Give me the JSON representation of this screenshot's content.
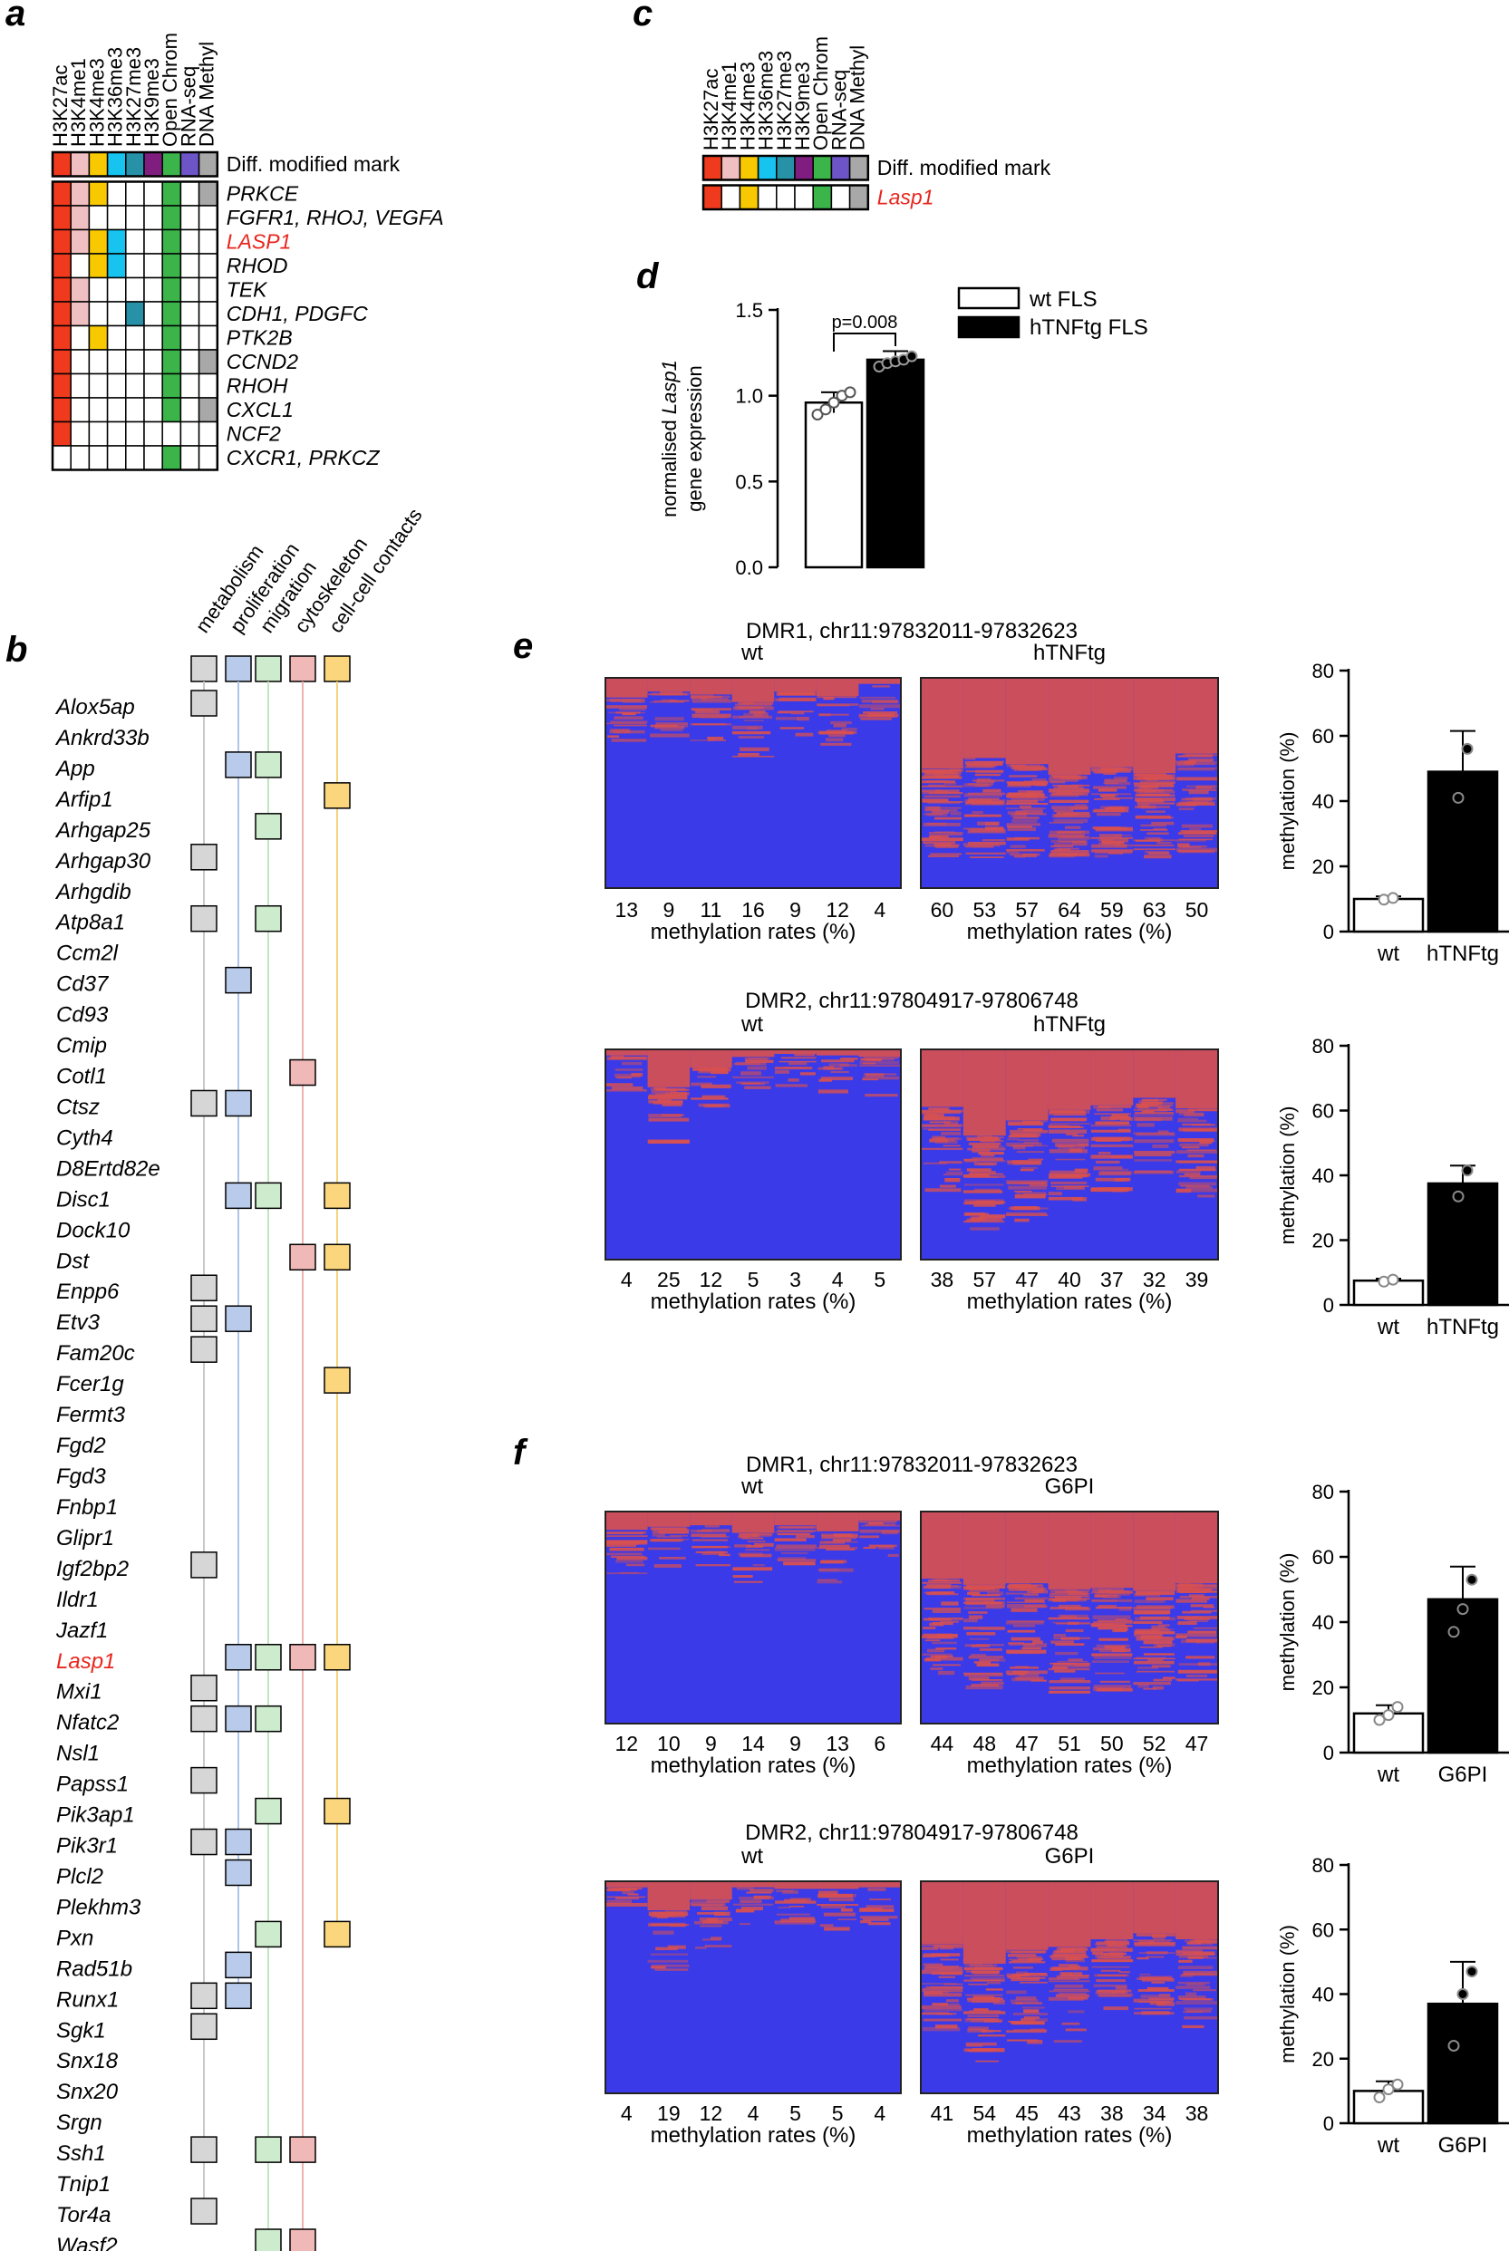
{
  "colors": {
    "H3K27ac": "#f03a1e",
    "H3K4me1": "#efbfc1",
    "H3K4me3": "#f8c800",
    "H3K36me3": "#17c3ef",
    "H3K27me3": "#2792a7",
    "H3K9me3": "#7f1e7f",
    "OpenChrom": "#3bb54a",
    "RNAseq": "#6d55c8",
    "DNAMethyl": "#a8a8a8",
    "red_text": "#e8261e",
    "heat_low": "#3a3ae8",
    "heat_high": "#d85050"
  },
  "panel_a": {
    "letter": "a",
    "columns": [
      "H3K27ac",
      "H3K4me1",
      "H3K4me3",
      "H3K36me3",
      "H3K27me3",
      "H3K9me3",
      "Open Chrom",
      "RNA-seq",
      "DNA Methyl"
    ],
    "header_label": "Diff. modified mark",
    "rows": [
      {
        "label": "PRKCE",
        "cells": [
          1,
          1,
          1,
          0,
          0,
          0,
          1,
          0,
          1
        ],
        "red": false
      },
      {
        "label": "FGFR1, RHOJ, VEGFA",
        "cells": [
          1,
          1,
          0,
          0,
          0,
          0,
          1,
          0,
          0
        ],
        "red": false
      },
      {
        "label": "LASP1",
        "cells": [
          1,
          1,
          1,
          1,
          0,
          0,
          1,
          0,
          0
        ],
        "red": true
      },
      {
        "label": "RHOD",
        "cells": [
          1,
          0,
          1,
          1,
          0,
          0,
          1,
          0,
          0
        ],
        "red": false
      },
      {
        "label": "TEK",
        "cells": [
          1,
          1,
          0,
          0,
          0,
          0,
          1,
          0,
          0
        ],
        "red": false
      },
      {
        "label": "CDH1, PDGFC",
        "cells": [
          1,
          1,
          0,
          0,
          1,
          0,
          1,
          0,
          0
        ],
        "red": false
      },
      {
        "label": "PTK2B",
        "cells": [
          1,
          0,
          1,
          0,
          0,
          0,
          1,
          0,
          0
        ],
        "red": false
      },
      {
        "label": "CCND2",
        "cells": [
          1,
          0,
          0,
          0,
          0,
          0,
          1,
          0,
          1
        ],
        "red": false
      },
      {
        "label": "RHOH",
        "cells": [
          1,
          0,
          0,
          0,
          0,
          0,
          1,
          0,
          0
        ],
        "red": false
      },
      {
        "label": "CXCL1",
        "cells": [
          1,
          0,
          0,
          0,
          0,
          0,
          1,
          0,
          1
        ],
        "red": false
      },
      {
        "label": "NCF2",
        "cells": [
          1,
          0,
          0,
          0,
          0,
          0,
          0,
          0,
          0
        ],
        "red": false
      },
      {
        "label": "CXCR1, PRKCZ",
        "cells": [
          0,
          0,
          0,
          0,
          0,
          0,
          1,
          0,
          0
        ],
        "red": false
      }
    ]
  },
  "panel_b": {
    "letter": "b",
    "categories": [
      "metabolism",
      "proliferation",
      "migration",
      "cytoskeleton",
      "cell-cell contacts"
    ],
    "category_colors": [
      "#d6d6d6",
      "#b9cbeb",
      "#cdebcd",
      "#f1b8b8",
      "#fbd67c"
    ],
    "category_line_colors": [
      "#c8c8c8",
      "#b0c4e8",
      "#bfe6bf",
      "#efb0b0",
      "#f5d27a"
    ],
    "genes": [
      {
        "name": "Alox5ap",
        "m": [
          1,
          0,
          0,
          0,
          0
        ]
      },
      {
        "name": "Ankrd33b",
        "m": [
          0,
          0,
          0,
          0,
          0
        ]
      },
      {
        "name": "App",
        "m": [
          0,
          1,
          1,
          0,
          0
        ]
      },
      {
        "name": "Arfip1",
        "m": [
          0,
          0,
          0,
          0,
          1
        ]
      },
      {
        "name": "Arhgap25",
        "m": [
          0,
          0,
          1,
          0,
          0
        ]
      },
      {
        "name": "Arhgap30",
        "m": [
          1,
          0,
          0,
          0,
          0
        ]
      },
      {
        "name": "Arhgdib",
        "m": [
          0,
          0,
          0,
          0,
          0
        ]
      },
      {
        "name": "Atp8a1",
        "m": [
          1,
          0,
          1,
          0,
          0
        ]
      },
      {
        "name": "Ccm2l",
        "m": [
          0,
          0,
          0,
          0,
          0
        ]
      },
      {
        "name": "Cd37",
        "m": [
          0,
          1,
          0,
          0,
          0
        ]
      },
      {
        "name": "Cd93",
        "m": [
          0,
          0,
          0,
          0,
          0
        ]
      },
      {
        "name": "Cmip",
        "m": [
          0,
          0,
          0,
          0,
          0
        ]
      },
      {
        "name": "Cotl1",
        "m": [
          0,
          0,
          0,
          1,
          0
        ]
      },
      {
        "name": "Ctsz",
        "m": [
          1,
          1,
          0,
          0,
          0
        ]
      },
      {
        "name": "Cyth4",
        "m": [
          0,
          0,
          0,
          0,
          0
        ]
      },
      {
        "name": "D8Ertd82e",
        "m": [
          0,
          0,
          0,
          0,
          0
        ]
      },
      {
        "name": "Disc1",
        "m": [
          0,
          1,
          1,
          0,
          1
        ]
      },
      {
        "name": "Dock10",
        "m": [
          0,
          0,
          0,
          0,
          0
        ]
      },
      {
        "name": "Dst",
        "m": [
          0,
          0,
          0,
          1,
          1
        ]
      },
      {
        "name": "Enpp6",
        "m": [
          1,
          0,
          0,
          0,
          0
        ]
      },
      {
        "name": "Etv3",
        "m": [
          1,
          1,
          0,
          0,
          0
        ]
      },
      {
        "name": "Fam20c",
        "m": [
          1,
          0,
          0,
          0,
          0
        ]
      },
      {
        "name": "Fcer1g",
        "m": [
          0,
          0,
          0,
          0,
          1
        ]
      },
      {
        "name": "Fermt3",
        "m": [
          0,
          0,
          0,
          0,
          0
        ]
      },
      {
        "name": "Fgd2",
        "m": [
          0,
          0,
          0,
          0,
          0
        ]
      },
      {
        "name": "Fgd3",
        "m": [
          0,
          0,
          0,
          0,
          0
        ]
      },
      {
        "name": "Fnbp1",
        "m": [
          0,
          0,
          0,
          0,
          0
        ]
      },
      {
        "name": "Glipr1",
        "m": [
          0,
          0,
          0,
          0,
          0
        ]
      },
      {
        "name": "Igf2bp2",
        "m": [
          1,
          0,
          0,
          0,
          0
        ]
      },
      {
        "name": "Ildr1",
        "m": [
          0,
          0,
          0,
          0,
          0
        ]
      },
      {
        "name": "Jazf1",
        "m": [
          0,
          0,
          0,
          0,
          0
        ]
      },
      {
        "name": "Lasp1",
        "m": [
          0,
          1,
          1,
          1,
          1
        ],
        "red": true
      },
      {
        "name": "Mxi1",
        "m": [
          1,
          0,
          0,
          0,
          0
        ]
      },
      {
        "name": "Nfatc2",
        "m": [
          1,
          1,
          1,
          0,
          0
        ]
      },
      {
        "name": "Nsl1",
        "m": [
          0,
          0,
          0,
          0,
          0
        ]
      },
      {
        "name": "Papss1",
        "m": [
          1,
          0,
          0,
          0,
          0
        ]
      },
      {
        "name": "Pik3ap1",
        "m": [
          0,
          0,
          1,
          0,
          1
        ]
      },
      {
        "name": "Pik3r1",
        "m": [
          1,
          1,
          0,
          0,
          0
        ]
      },
      {
        "name": "Plcl2",
        "m": [
          0,
          1,
          0,
          0,
          0
        ]
      },
      {
        "name": "Plekhm3",
        "m": [
          0,
          0,
          0,
          0,
          0
        ]
      },
      {
        "name": "Pxn",
        "m": [
          0,
          0,
          1,
          0,
          1
        ]
      },
      {
        "name": "Rad51b",
        "m": [
          0,
          1,
          0,
          0,
          0
        ]
      },
      {
        "name": "Runx1",
        "m": [
          1,
          1,
          0,
          0,
          0
        ]
      },
      {
        "name": "Sgk1",
        "m": [
          1,
          0,
          0,
          0,
          0
        ]
      },
      {
        "name": "Snx18",
        "m": [
          0,
          0,
          0,
          0,
          0
        ]
      },
      {
        "name": "Snx20",
        "m": [
          0,
          0,
          0,
          0,
          0
        ]
      },
      {
        "name": "Srgn",
        "m": [
          0,
          0,
          0,
          0,
          0
        ]
      },
      {
        "name": "Ssh1",
        "m": [
          1,
          0,
          1,
          1,
          0
        ]
      },
      {
        "name": "Tnip1",
        "m": [
          0,
          0,
          0,
          0,
          0
        ]
      },
      {
        "name": "Tor4a",
        "m": [
          1,
          0,
          0,
          0,
          0
        ]
      },
      {
        "name": "Wasf2",
        "m": [
          0,
          0,
          1,
          1,
          0
        ]
      }
    ]
  },
  "panel_c": {
    "letter": "c",
    "columns": [
      "H3K27ac",
      "H3K4me1",
      "H3K4me3",
      "H3K36me3",
      "H3K27me3",
      "H3K9me3",
      "Open Chrom",
      "RNA-seq",
      "DNA Methyl"
    ],
    "header_label": "Diff. modified mark",
    "row": {
      "label": "Lasp1",
      "cells": [
        1,
        0,
        1,
        0,
        0,
        0,
        1,
        0,
        1
      ]
    }
  },
  "chart_data": [
    {
      "id": "d",
      "type": "bar",
      "letter": "d",
      "categories": [
        "wt FLS",
        "hTNFtg FLS"
      ],
      "values": [
        0.96,
        1.21
      ],
      "errors": [
        0.06,
        0.05
      ],
      "points": [
        [
          0.89,
          0.92,
          0.96,
          1.0,
          1.02
        ],
        [
          1.17,
          1.19,
          1.2,
          1.21,
          1.23
        ]
      ],
      "ylabel_pre": "normalised ",
      "ylabel_gene": "Lasp1",
      "ylabel_line2": "gene expression",
      "ylim": [
        0,
        1.5
      ],
      "yticks": [
        "0.0",
        "0.5",
        "1.0",
        "1.5"
      ],
      "pvalue": "p=0.008",
      "legend": [
        "wt FLS",
        "hTNFtg FLS"
      ]
    },
    {
      "id": "e1",
      "type": "heatmap_with_bar",
      "letter": "e",
      "title": "DMR1, chr11:97832011-97832623",
      "groups": [
        "wt",
        "hTNFtg"
      ],
      "rates": [
        [
          13,
          9,
          11,
          16,
          9,
          12,
          4
        ],
        [
          60,
          53,
          57,
          64,
          59,
          63,
          50
        ]
      ],
      "axis_label": "methylation rates (%)",
      "bar": {
        "categories": [
          "wt",
          "hTNFtg"
        ],
        "values": [
          10,
          49
        ],
        "errors": [
          0.8,
          12.5
        ],
        "points": [
          [
            9.8,
            10.3
          ],
          [
            41,
            56
          ]
        ],
        "ylim": [
          0,
          80
        ],
        "yticks": [
          "0",
          "20",
          "40",
          "60",
          "80"
        ],
        "ylabel": "methylation (%)"
      }
    },
    {
      "id": "e2",
      "type": "heatmap_with_bar",
      "title": "DMR2, chr11:97804917-97806748",
      "groups": [
        "wt",
        "hTNFtg"
      ],
      "rates": [
        [
          4,
          25,
          12,
          5,
          3,
          4,
          5
        ],
        [
          38,
          57,
          47,
          40,
          37,
          32,
          39
        ]
      ],
      "axis_label": "methylation rates (%)",
      "bar": {
        "categories": [
          "wt",
          "hTNFtg"
        ],
        "values": [
          7.5,
          37.5
        ],
        "errors": [
          0.6,
          5.5
        ],
        "points": [
          [
            7.2,
            7.8
          ],
          [
            33.5,
            41.5
          ]
        ],
        "ylim": [
          0,
          80
        ],
        "yticks": [
          "0",
          "20",
          "40",
          "60",
          "80"
        ],
        "ylabel": "methylation (%)"
      }
    },
    {
      "id": "f1",
      "type": "heatmap_with_bar",
      "letter": "f",
      "title": "DMR1, chr11:97832011-97832623",
      "groups": [
        "wt",
        "G6PI"
      ],
      "rates": [
        [
          12,
          10,
          9,
          14,
          9,
          13,
          6
        ],
        [
          44,
          48,
          47,
          51,
          50,
          52,
          47
        ]
      ],
      "axis_label": "methylation rates (%)",
      "bar": {
        "categories": [
          "wt",
          "G6PI"
        ],
        "values": [
          12,
          47
        ],
        "errors": [
          2.5,
          10
        ],
        "points": [
          [
            10,
            11.5,
            14
          ],
          [
            37,
            44,
            53
          ]
        ],
        "ylim": [
          0,
          80
        ],
        "yticks": [
          "0",
          "20",
          "40",
          "60",
          "80"
        ],
        "ylabel": "methylation (%)"
      }
    },
    {
      "id": "f2",
      "type": "heatmap_with_bar",
      "title": "DMR2, chr11:97804917-97806748",
      "groups": [
        "wt",
        "G6PI"
      ],
      "rates": [
        [
          4,
          19,
          12,
          4,
          5,
          5,
          4
        ],
        [
          41,
          54,
          45,
          43,
          38,
          34,
          38
        ]
      ],
      "axis_label": "methylation rates (%)",
      "bar": {
        "categories": [
          "wt",
          "G6PI"
        ],
        "values": [
          10,
          37
        ],
        "errors": [
          3,
          13
        ],
        "points": [
          [
            8,
            10.5,
            12
          ],
          [
            24,
            40,
            47
          ]
        ],
        "ylim": [
          0,
          80
        ],
        "yticks": [
          "0",
          "20",
          "40",
          "60",
          "80"
        ],
        "ylabel": "methylation (%)"
      }
    }
  ]
}
